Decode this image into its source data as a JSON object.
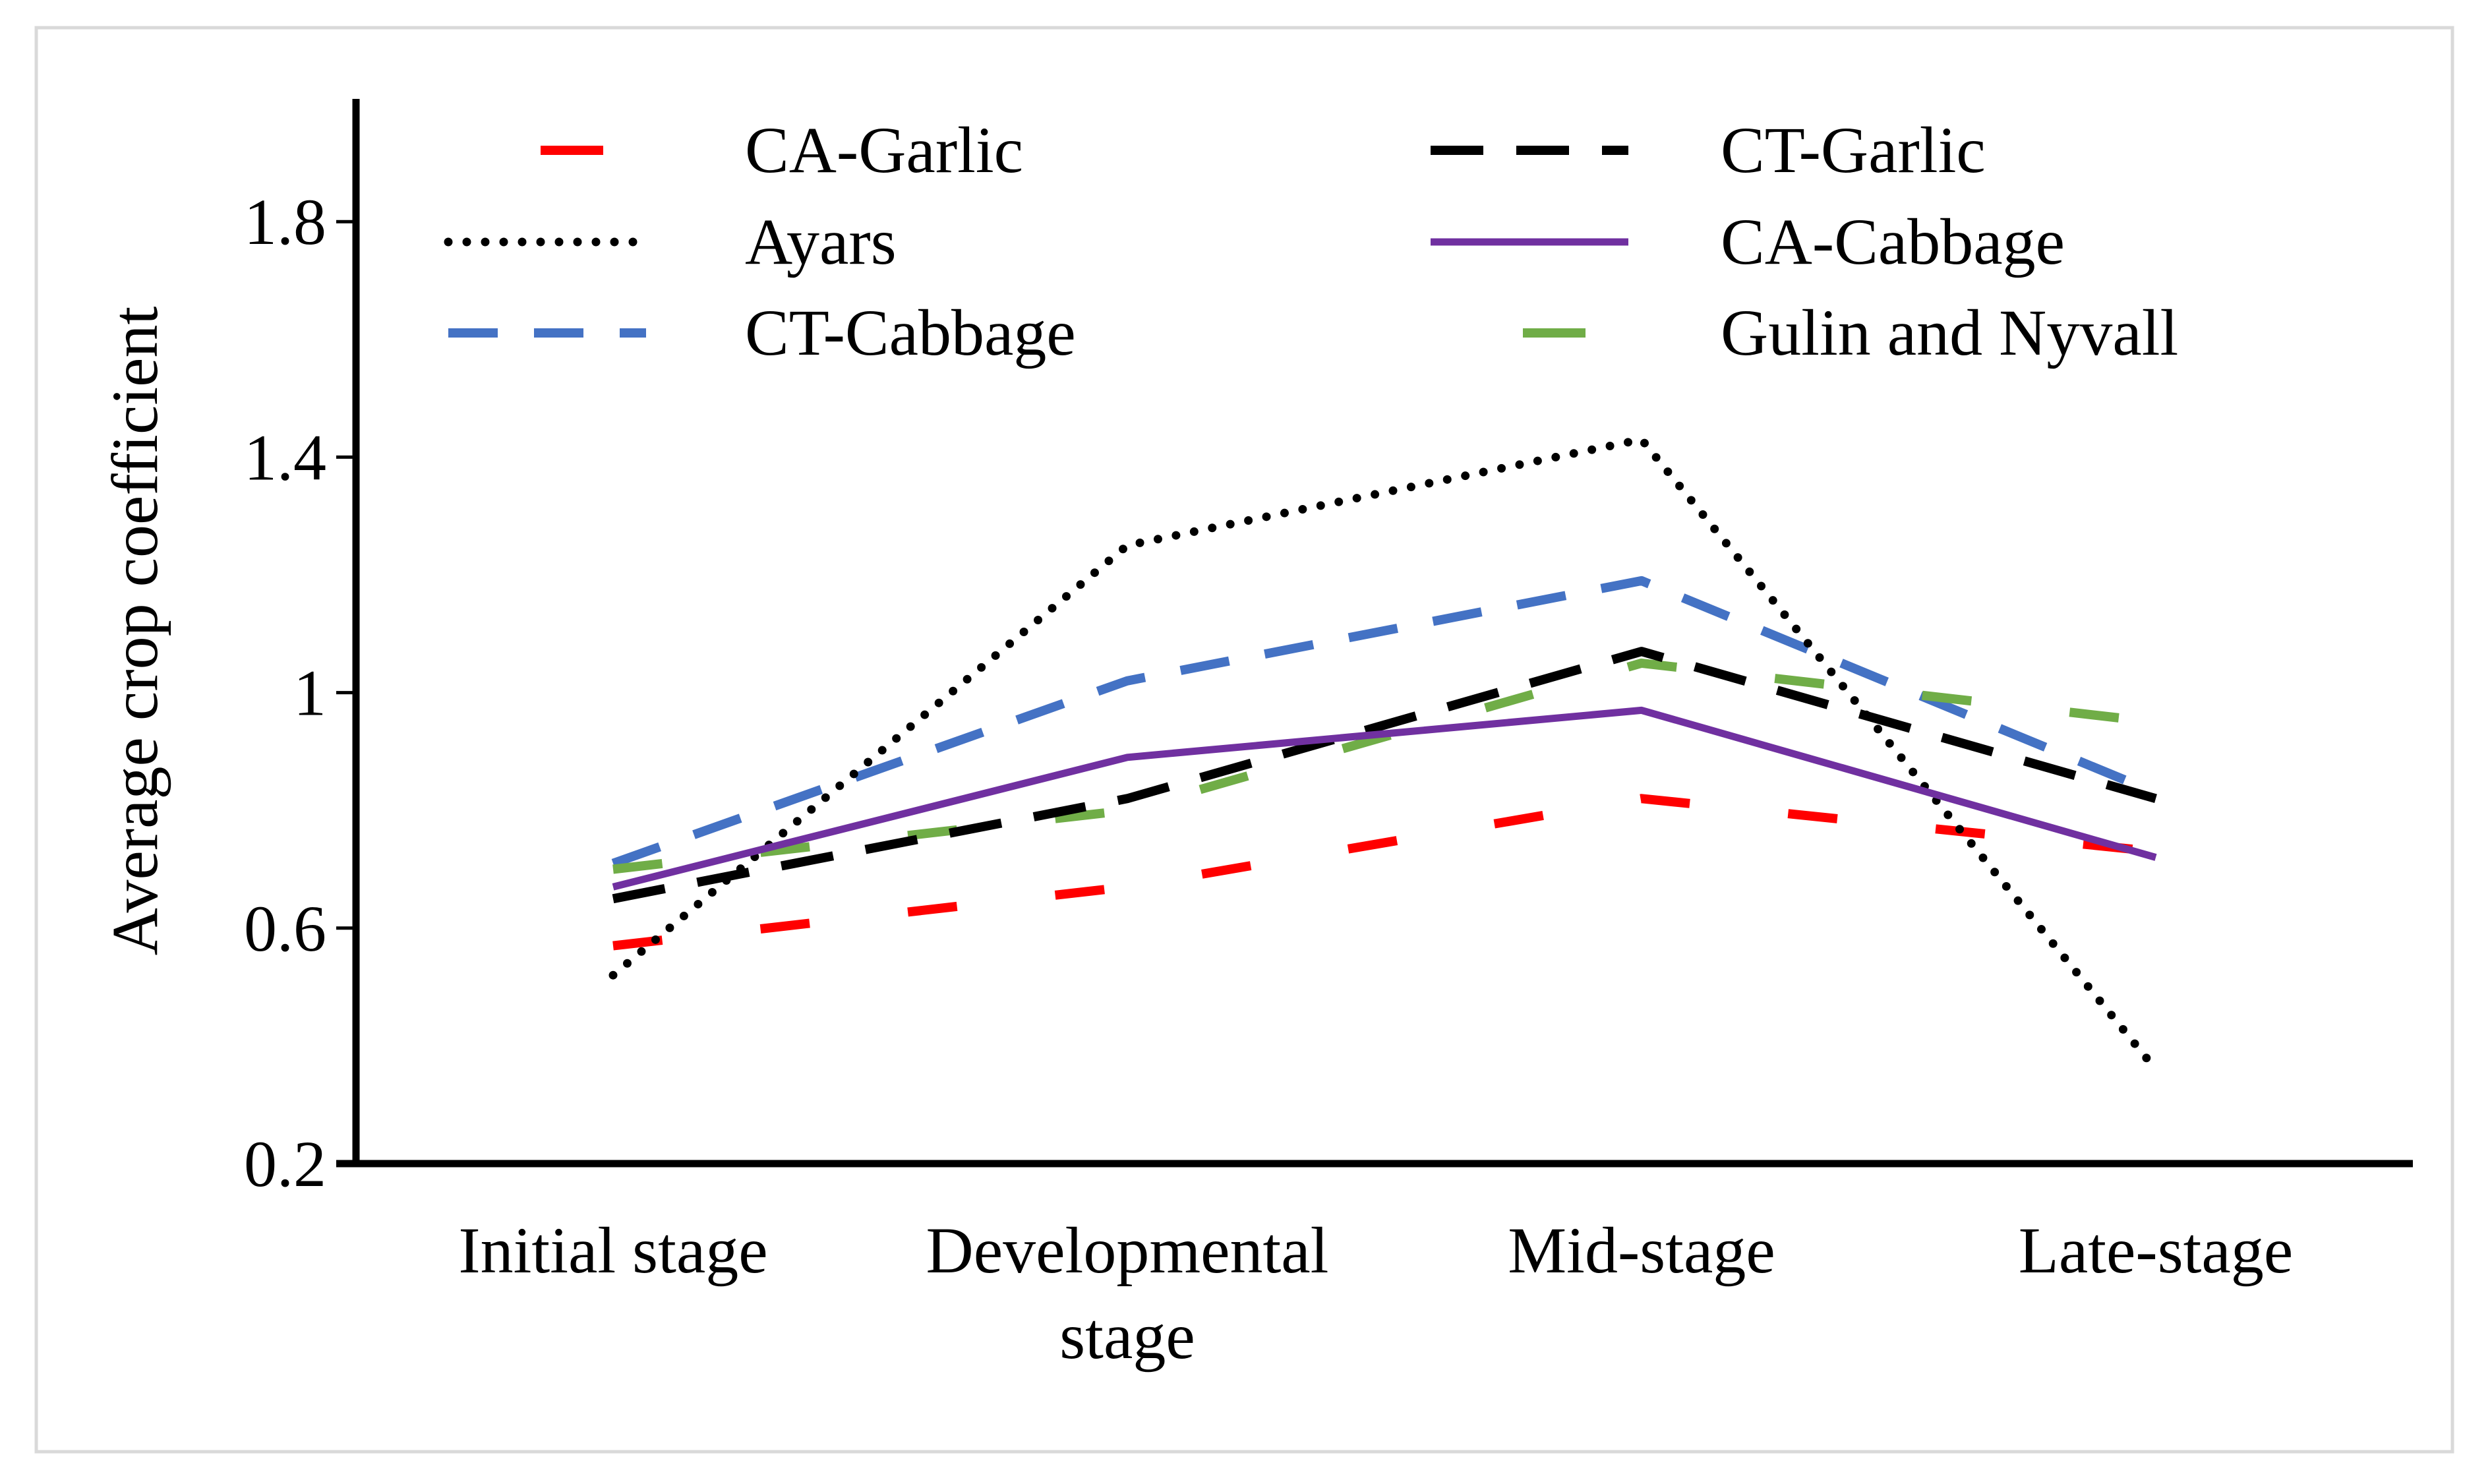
{
  "chart_data": {
    "type": "line",
    "title": "",
    "xlabel": "",
    "ylabel": "Average crop coefficient",
    "ylim": [
      0.2,
      2.0
    ],
    "yticks": [
      {
        "value": 0.2,
        "label": "0.2"
      },
      {
        "value": 0.6,
        "label": "0.6"
      },
      {
        "value": 1.0,
        "label": "1"
      },
      {
        "value": 1.4,
        "label": "1.4"
      },
      {
        "value": 1.8,
        "label": "1.8"
      }
    ],
    "categories": [
      [
        "Initial stage"
      ],
      [
        "Developmental",
        "stage"
      ],
      [
        "Mid-stage"
      ],
      [
        "Late-stage"
      ]
    ],
    "legend_position": "top",
    "series": [
      {
        "name": "CA-Garlic",
        "color": "#ff0000",
        "style": "longdash",
        "values": [
          0.57,
          0.67,
          0.82,
          0.73
        ]
      },
      {
        "name": "CT-Garlic",
        "color": "#000000",
        "style": "dashdash",
        "values": [
          0.65,
          0.82,
          1.07,
          0.82
        ]
      },
      {
        "name": "Ayars",
        "color": "#000000",
        "style": "dotted",
        "values": [
          0.52,
          1.25,
          1.43,
          0.36
        ]
      },
      {
        "name": "CA-Cabbage",
        "color": "#7030a0",
        "style": "solid",
        "values": [
          0.67,
          0.89,
          0.97,
          0.72
        ]
      },
      {
        "name": "CT-Cabbage",
        "color": "#4472c4",
        "style": "dashed",
        "values": [
          0.71,
          1.02,
          1.19,
          0.83
        ]
      },
      {
        "name": "Gulin and Nyvall",
        "color": "#70ad47",
        "style": "longdash",
        "values": [
          0.7,
          0.8,
          1.05,
          0.95
        ]
      }
    ]
  }
}
